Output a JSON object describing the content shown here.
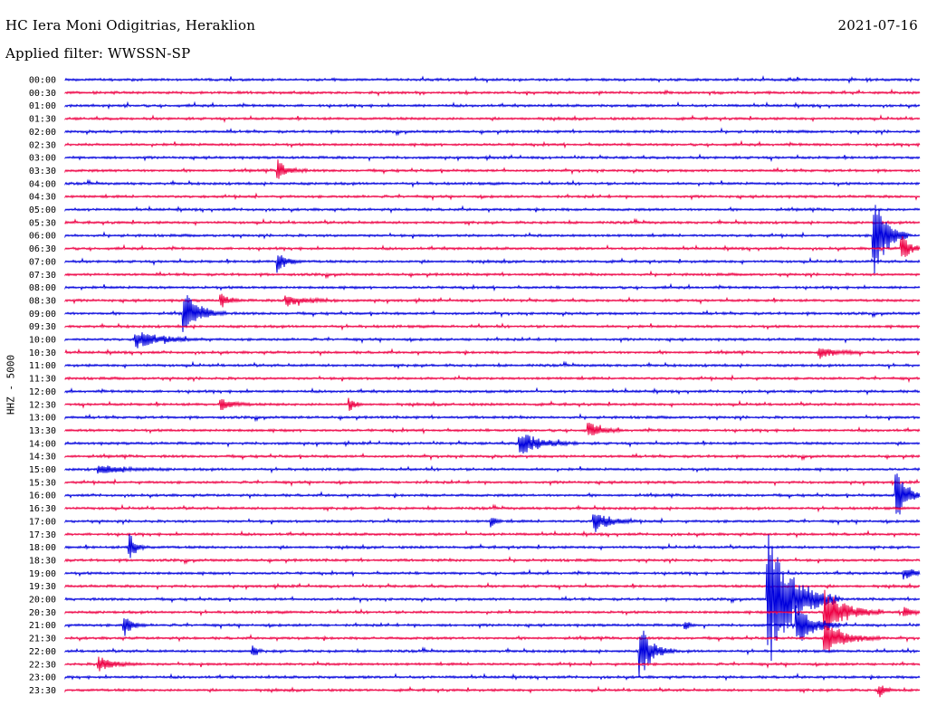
{
  "header": {
    "station": "HC Iera Moni Odigitrias, Heraklion",
    "date": "2021-07-16",
    "filter": "Applied filter: WWSSN-SP"
  },
  "chart_data": {
    "type": "line",
    "subtype": "helicorder",
    "ylabel": "HHZ - 5000",
    "x_units": "minutes within row",
    "x_range": [
      0,
      30
    ],
    "row_labels": [
      "00:00",
      "00:30",
      "01:00",
      "01:30",
      "02:00",
      "02:30",
      "03:00",
      "03:30",
      "04:00",
      "04:30",
      "05:00",
      "05:30",
      "06:00",
      "06:30",
      "07:00",
      "07:30",
      "08:00",
      "08:30",
      "09:00",
      "09:30",
      "10:00",
      "10:30",
      "11:00",
      "11:30",
      "12:00",
      "12:30",
      "13:00",
      "13:30",
      "14:00",
      "14:30",
      "15:00",
      "15:30",
      "16:00",
      "16:30",
      "17:00",
      "17:30",
      "18:00",
      "18:30",
      "19:00",
      "19:30",
      "20:00",
      "20:30",
      "21:00",
      "21:30",
      "22:00",
      "22:30",
      "23:00",
      "23:30"
    ],
    "colors": {
      "even_rows": "#0000dd",
      "odd_rows": "#ee0044"
    },
    "events": [
      {
        "row": "03:30",
        "minute": 7.5,
        "amplitude": 0.9,
        "duration": 1.0
      },
      {
        "row": "06:00",
        "minute": 28.4,
        "amplitude": 4.5,
        "duration": 1.2
      },
      {
        "row": "06:30",
        "minute": 29.4,
        "amplitude": 1.2,
        "duration": 0.8
      },
      {
        "row": "07:00",
        "minute": 7.5,
        "amplitude": 1.0,
        "duration": 0.8
      },
      {
        "row": "08:30",
        "minute": 5.5,
        "amplitude": 0.6,
        "duration": 0.8
      },
      {
        "row": "08:30",
        "minute": 7.8,
        "amplitude": 0.5,
        "duration": 2.0
      },
      {
        "row": "09:00",
        "minute": 4.2,
        "amplitude": 2.0,
        "duration": 1.5
      },
      {
        "row": "10:00",
        "minute": 2.5,
        "amplitude": 0.8,
        "duration": 2.5
      },
      {
        "row": "10:30",
        "minute": 26.5,
        "amplitude": 0.6,
        "duration": 1.5
      },
      {
        "row": "12:30",
        "minute": 5.5,
        "amplitude": 0.5,
        "duration": 1.2
      },
      {
        "row": "12:30",
        "minute": 10.0,
        "amplitude": 0.6,
        "duration": 0.5
      },
      {
        "row": "13:30",
        "minute": 18.4,
        "amplitude": 0.7,
        "duration": 1.2
      },
      {
        "row": "14:00",
        "minute": 16.0,
        "amplitude": 1.1,
        "duration": 2.0
      },
      {
        "row": "15:00",
        "minute": 1.2,
        "amplitude": 0.4,
        "duration": 2.5
      },
      {
        "row": "16:00",
        "minute": 29.2,
        "amplitude": 2.5,
        "duration": 1.0
      },
      {
        "row": "17:00",
        "minute": 18.6,
        "amplitude": 1.0,
        "duration": 1.5
      },
      {
        "row": "17:00",
        "minute": 15.0,
        "amplitude": 0.5,
        "duration": 0.4
      },
      {
        "row": "18:00",
        "minute": 2.3,
        "amplitude": 1.2,
        "duration": 0.6
      },
      {
        "row": "19:00",
        "minute": 29.5,
        "amplitude": 0.5,
        "duration": 1.0
      },
      {
        "row": "20:00",
        "minute": 24.7,
        "amplitude": 6.5,
        "duration": 2.5
      },
      {
        "row": "20:30",
        "minute": 26.7,
        "amplitude": 2.2,
        "duration": 2.0
      },
      {
        "row": "20:30",
        "minute": 29.5,
        "amplitude": 0.6,
        "duration": 0.8
      },
      {
        "row": "21:00",
        "minute": 2.1,
        "amplitude": 1.0,
        "duration": 0.7
      },
      {
        "row": "21:00",
        "minute": 25.7,
        "amplitude": 2.0,
        "duration": 1.5
      },
      {
        "row": "21:00",
        "minute": 21.8,
        "amplitude": 0.4,
        "duration": 0.4
      },
      {
        "row": "21:30",
        "minute": 26.7,
        "amplitude": 1.5,
        "duration": 2.0
      },
      {
        "row": "22:00",
        "minute": 20.2,
        "amplitude": 2.5,
        "duration": 1.2
      },
      {
        "row": "22:00",
        "minute": 6.6,
        "amplitude": 0.5,
        "duration": 0.4
      },
      {
        "row": "22:30",
        "minute": 1.2,
        "amplitude": 0.7,
        "duration": 1.5
      },
      {
        "row": "23:30",
        "minute": 28.6,
        "amplitude": 0.6,
        "duration": 0.6
      }
    ],
    "grid": false,
    "legend": "none"
  }
}
